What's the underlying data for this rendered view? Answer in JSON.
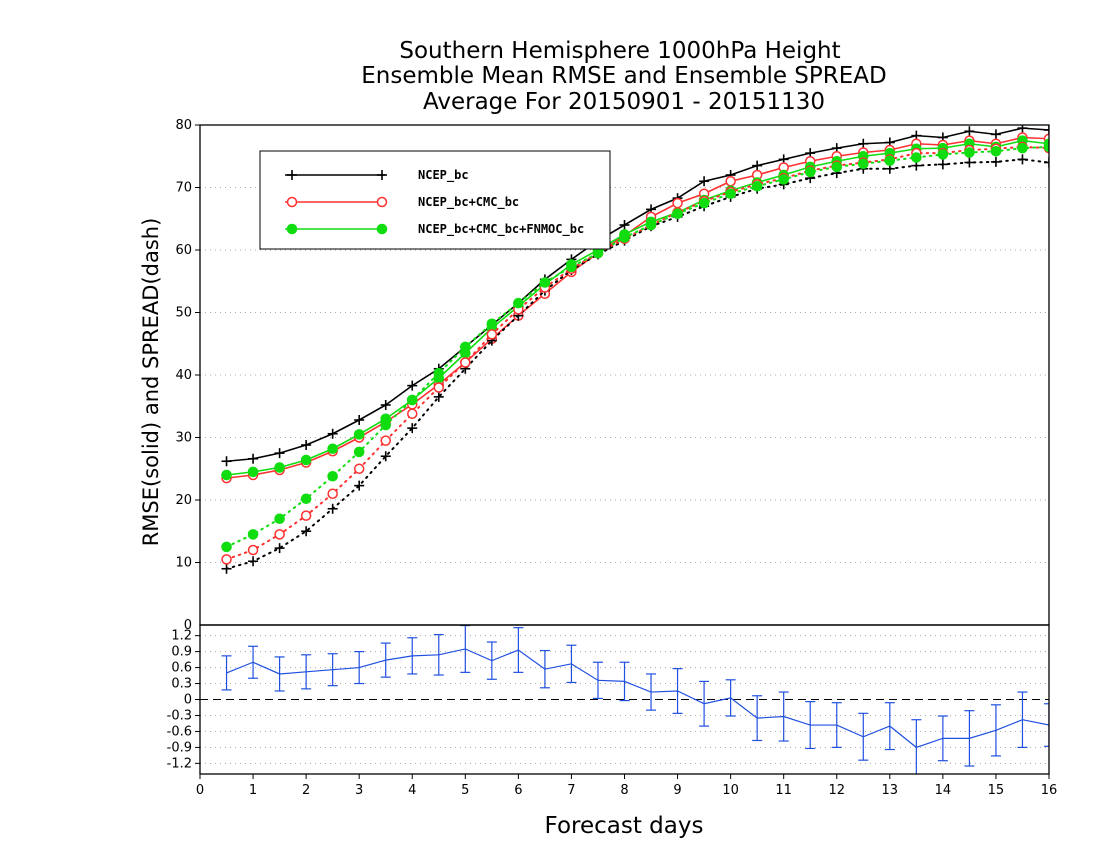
{
  "chart_data": [
    {
      "type": "line",
      "title": [
        "Southern Hemisphere 1000hPa Height",
        "Ensemble Mean RMSE and Ensemble SPREAD",
        "Average For 20150901 - 20151130"
      ],
      "ylabel": "RMSE(solid) and SPREAD(dash)",
      "xlim": [
        0,
        16
      ],
      "ylim": [
        0,
        80
      ],
      "yticks": [
        "10",
        "20",
        "30",
        "40",
        "50",
        "60",
        "70",
        "80"
      ],
      "grid": "horizontal dotted",
      "legend_position": "top-left",
      "x": [
        0.5,
        1,
        1.5,
        2,
        2.5,
        3,
        3.5,
        4,
        4.5,
        5,
        5.5,
        6,
        6.5,
        7,
        7.5,
        8,
        8.5,
        9,
        9.5,
        10,
        10.5,
        11,
        11.5,
        12,
        12.5,
        13,
        13.5,
        14,
        14.5,
        15,
        15.5,
        16
      ],
      "series": [
        {
          "name": "NCEP_bc",
          "color": "#000000",
          "marker": "plus",
          "style": "solid",
          "values": [
            26.2,
            26.6,
            27.5,
            28.8,
            30.6,
            32.8,
            35.2,
            38.3,
            41.0,
            44.5,
            48.0,
            51.5,
            55.3,
            58.5,
            61.5,
            64.0,
            66.5,
            68.3,
            71.0,
            72.0,
            73.5,
            74.5,
            75.5,
            76.3,
            77.0,
            77.2,
            78.3,
            78.0,
            79.0,
            78.5,
            79.5,
            79.2
          ]
        },
        {
          "name": "NCEP_bc+CMC_bc",
          "color": "#ff3030",
          "marker": "open-circle",
          "style": "solid",
          "values": [
            23.5,
            24.0,
            24.8,
            26.0,
            27.8,
            30.0,
            32.5,
            35.3,
            38.5,
            42.0,
            45.8,
            49.5,
            53.0,
            56.5,
            59.5,
            62.3,
            65.3,
            67.5,
            69.0,
            71.0,
            72.0,
            73.2,
            74.2,
            75.0,
            75.6,
            76.0,
            77.0,
            76.8,
            77.5,
            77.0,
            78.0,
            77.8
          ]
        },
        {
          "name": "NCEP_bc+CMC_bc+FNMOC_bc",
          "color": "#10dd10",
          "marker": "filled-circle",
          "style": "solid",
          "values": [
            24.0,
            24.5,
            25.2,
            26.4,
            28.2,
            30.5,
            33.0,
            36.0,
            39.5,
            43.5,
            47.5,
            51.0,
            54.5,
            57.7,
            60.0,
            62.5,
            64.5,
            66.0,
            68.0,
            69.5,
            70.8,
            72.0,
            73.3,
            74.2,
            75.0,
            75.5,
            76.2,
            76.3,
            77.0,
            76.5,
            77.5,
            77.0
          ]
        },
        {
          "name": "",
          "color": "#000000",
          "marker": "plus",
          "style": "dotted",
          "values": [
            9.0,
            10.2,
            12.3,
            15.0,
            18.6,
            22.3,
            27.0,
            31.5,
            36.5,
            41.0,
            45.5,
            49.5,
            53.5,
            56.8,
            59.3,
            61.5,
            63.8,
            65.3,
            67.0,
            68.5,
            69.8,
            70.5,
            71.5,
            72.3,
            73.0,
            73.0,
            73.5,
            73.7,
            74.0,
            74.1,
            74.5,
            74.0
          ]
        },
        {
          "name": "",
          "color": "#ff3030",
          "marker": "open-circle",
          "style": "dotted",
          "values": [
            10.5,
            12.0,
            14.5,
            17.5,
            21.0,
            25.0,
            29.5,
            33.8,
            38.0,
            42.0,
            46.5,
            50.5,
            54.0,
            57.0,
            59.5,
            61.8,
            64.0,
            66.0,
            67.8,
            69.3,
            70.5,
            71.5,
            72.7,
            73.5,
            74.0,
            74.5,
            75.5,
            75.5,
            76.0,
            76.2,
            76.5,
            76.3
          ]
        },
        {
          "name": "",
          "color": "#10dd10",
          "marker": "filled-circle",
          "style": "dotted",
          "values": [
            12.5,
            14.5,
            17.0,
            20.2,
            23.8,
            27.7,
            32.0,
            36.0,
            40.3,
            44.5,
            48.2,
            51.5,
            54.8,
            57.3,
            59.5,
            62.0,
            64.0,
            65.8,
            67.5,
            69.0,
            70.2,
            71.3,
            72.5,
            73.3,
            73.8,
            74.3,
            74.8,
            75.3,
            75.6,
            75.8,
            76.3,
            76.5
          ]
        }
      ]
    },
    {
      "type": "line",
      "xlabel": "Forecast days",
      "xlim": [
        0,
        16
      ],
      "xticks": [
        "0",
        "1",
        "2",
        "3",
        "4",
        "5",
        "6",
        "7",
        "8",
        "9",
        "10",
        "11",
        "12",
        "13",
        "14",
        "15",
        "16"
      ],
      "ylim": [
        -1.4,
        1.4
      ],
      "ytop_label": "0",
      "yticks": [
        "1.2",
        "0.9",
        "0.6",
        "0.3",
        "0",
        "-0.3",
        "-0.6",
        "-0.9",
        "-1.2"
      ],
      "reference_line": 0,
      "grid": "horizontal dotted",
      "series": [
        {
          "color": "#2050e0",
          "style": "solid with error bars",
          "x": [
            0.5,
            1,
            1.5,
            2,
            2.5,
            3,
            3.5,
            4,
            4.5,
            5,
            5.5,
            6,
            6.5,
            7,
            7.5,
            8,
            8.5,
            9,
            9.5,
            10,
            10.5,
            11,
            11.5,
            12,
            12.5,
            13,
            13.5,
            14,
            14.5,
            15,
            15.5,
            16
          ],
          "values": [
            0.5,
            0.7,
            0.48,
            0.52,
            0.56,
            0.6,
            0.74,
            0.82,
            0.84,
            0.95,
            0.73,
            0.93,
            0.57,
            0.67,
            0.36,
            0.34,
            0.14,
            0.16,
            -0.08,
            0.03,
            -0.35,
            -0.32,
            -0.48,
            -0.48,
            -0.7,
            -0.5,
            -0.9,
            -0.73,
            -0.73,
            -0.58,
            -0.38,
            -0.48
          ],
          "err": [
            0.32,
            0.3,
            0.32,
            0.32,
            0.3,
            0.3,
            0.32,
            0.34,
            0.38,
            0.44,
            0.35,
            0.42,
            0.35,
            0.35,
            0.34,
            0.36,
            0.34,
            0.42,
            0.42,
            0.34,
            0.42,
            0.46,
            0.44,
            0.42,
            0.44,
            0.44,
            0.52,
            0.42,
            0.52,
            0.48,
            0.52,
            0.4
          ]
        }
      ]
    }
  ]
}
